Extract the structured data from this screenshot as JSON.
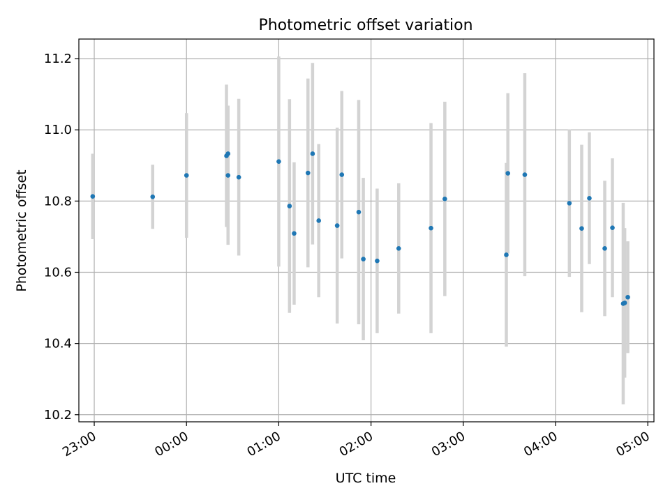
{
  "chart_data": {
    "type": "scatter",
    "title": "Photometric offset variation",
    "xlabel": "UTC time",
    "ylabel": "Photometric offset",
    "x_unit": "UTC time (hours, day crossing midnight; 23:00 shown as -1.0)",
    "xlim": [
      "22:50",
      "05:04"
    ],
    "ylim": [
      10.18,
      11.255
    ],
    "grid": true,
    "x_ticks": [
      "23:00",
      "00:00",
      "01:00",
      "02:00",
      "03:00",
      "04:00",
      "05:00"
    ],
    "y_ticks": [
      "10.2",
      "10.4",
      "10.6",
      "10.8",
      "11.0",
      "11.2"
    ],
    "point_color": "#1f77b4",
    "errorbar_color": "#d3d3d3",
    "points": [
      {
        "time": "22:59",
        "y": 10.813,
        "err": 0.12
      },
      {
        "time": "23:38",
        "y": 10.812,
        "err": 0.09
      },
      {
        "time": "00:00",
        "y": 10.872,
        "err": 0.175
      },
      {
        "time": "00:26",
        "y": 10.927,
        "err": 0.2
      },
      {
        "time": "00:27",
        "y": 10.933,
        "err": 0.135
      },
      {
        "time": "00:27",
        "y": 10.872,
        "err": 0.195
      },
      {
        "time": "00:34",
        "y": 10.867,
        "err": 0.22
      },
      {
        "time": "01:00",
        "y": 10.911,
        "err": 0.295
      },
      {
        "time": "01:07",
        "y": 10.786,
        "err": 0.3
      },
      {
        "time": "01:10",
        "y": 10.709,
        "err": 0.2
      },
      {
        "time": "01:19",
        "y": 10.879,
        "err": 0.265
      },
      {
        "time": "01:22",
        "y": 10.933,
        "err": 0.255
      },
      {
        "time": "01:26",
        "y": 10.745,
        "err": 0.215
      },
      {
        "time": "01:38",
        "y": 10.731,
        "err": 0.275
      },
      {
        "time": "01:41",
        "y": 10.874,
        "err": 0.235
      },
      {
        "time": "01:52",
        "y": 10.769,
        "err": 0.315
      },
      {
        "time": "01:55",
        "y": 10.637,
        "err": 0.228
      },
      {
        "time": "02:04",
        "y": 10.632,
        "err": 0.203
      },
      {
        "time": "02:18",
        "y": 10.667,
        "err": 0.183
      },
      {
        "time": "02:39",
        "y": 10.724,
        "err": 0.295
      },
      {
        "time": "02:48",
        "y": 10.806,
        "err": 0.273
      },
      {
        "time": "03:28",
        "y": 10.649,
        "err": 0.258
      },
      {
        "time": "03:29",
        "y": 10.878,
        "err": 0.225
      },
      {
        "time": "03:40",
        "y": 10.874,
        "err": 0.285
      },
      {
        "time": "04:09",
        "y": 10.794,
        "err": 0.207
      },
      {
        "time": "04:17",
        "y": 10.723,
        "err": 0.235
      },
      {
        "time": "04:22",
        "y": 10.808,
        "err": 0.185
      },
      {
        "time": "04:32",
        "y": 10.667,
        "err": 0.19
      },
      {
        "time": "04:37",
        "y": 10.725,
        "err": 0.195
      },
      {
        "time": "04:44",
        "y": 10.512,
        "err": 0.283
      },
      {
        "time": "04:45",
        "y": 10.514,
        "err": 0.21
      },
      {
        "time": "04:47",
        "y": 10.53,
        "err": 0.157
      }
    ]
  }
}
